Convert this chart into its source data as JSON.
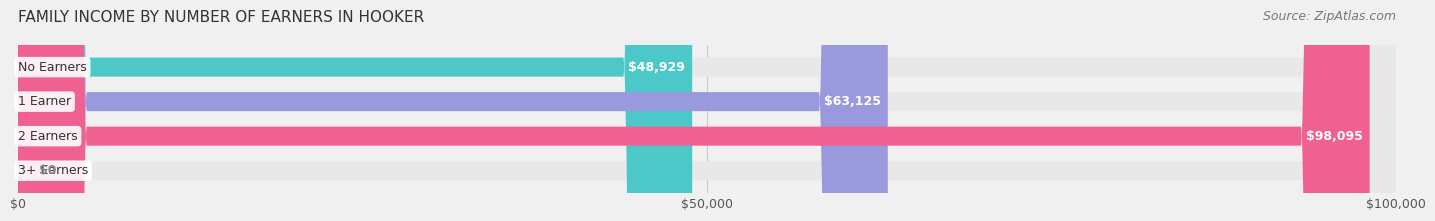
{
  "title": "FAMILY INCOME BY NUMBER OF EARNERS IN HOOKER",
  "source": "Source: ZipAtlas.com",
  "categories": [
    "No Earners",
    "1 Earner",
    "2 Earners",
    "3+ Earners"
  ],
  "values": [
    48929,
    63125,
    98095,
    0
  ],
  "bar_colors": [
    "#4DC8C8",
    "#9999DD",
    "#F06090",
    "#F5C88A"
  ],
  "bar_labels": [
    "$48,929",
    "$63,125",
    "$98,095",
    "$0"
  ],
  "xlim": [
    0,
    100000
  ],
  "xtick_values": [
    0,
    50000,
    100000
  ],
  "xtick_labels": [
    "$0",
    "$50,000",
    "$100,000"
  ],
  "background_color": "#f0f0f0",
  "bar_bg_color": "#e8e8e8",
  "title_fontsize": 11,
  "label_fontsize": 9,
  "tick_fontsize": 9,
  "source_fontsize": 9,
  "bar_height": 0.55,
  "label_color": "#ffffff",
  "label_color_zero": "#888888"
}
